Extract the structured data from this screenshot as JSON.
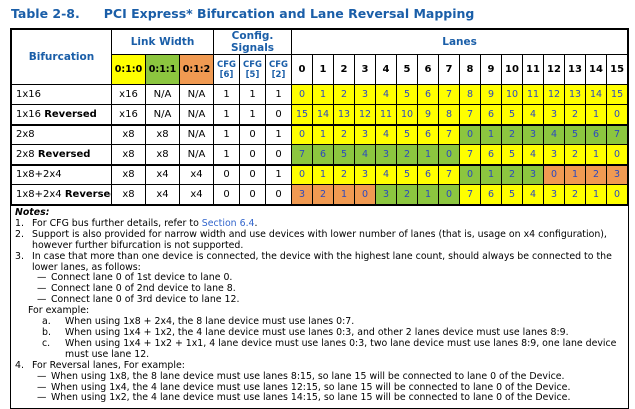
{
  "title": {
    "number": "Table 2-8.",
    "text": "PCI Express* Bifurcation and Lane Reversal Mapping"
  },
  "palette": {
    "heading_blue": "#1a5ea8",
    "lane_text_blue": "#2b49c0",
    "link_blue": "#3366cc",
    "border": "#000000",
    "cell_colors": {
      "y": "#ffff00",
      "g": "#8cc63f",
      "o": "#f09a52"
    }
  },
  "table": {
    "headers": {
      "bifurcation": "Bifurcation",
      "link_width": "Link Width",
      "config_signals": "Config. Signals",
      "lanes": "Lanes",
      "link_width_cols": [
        {
          "label": "0:1:0",
          "color": "y"
        },
        {
          "label": "0:1:1",
          "color": "g"
        },
        {
          "label": "0:1:2",
          "color": "o"
        }
      ],
      "cfg_cols": [
        {
          "top": "CFG",
          "bottom": "[6]"
        },
        {
          "top": "CFG",
          "bottom": "[5]"
        },
        {
          "top": "CFG",
          "bottom": "[2]"
        }
      ],
      "lane_numbers": [
        "0",
        "1",
        "2",
        "3",
        "4",
        "5",
        "6",
        "7",
        "8",
        "9",
        "10",
        "11",
        "12",
        "13",
        "14",
        "15"
      ]
    },
    "rows": [
      {
        "label": "1x16",
        "label_bold": "",
        "link_width": [
          "x16",
          "N/A",
          "N/A"
        ],
        "cfg": [
          "1",
          "1",
          "1"
        ],
        "lane_values": [
          "0",
          "1",
          "2",
          "3",
          "4",
          "5",
          "6",
          "7",
          "8",
          "9",
          "10",
          "11",
          "12",
          "13",
          "14",
          "15"
        ],
        "lane_colors": "yyyyyyyyyyyyyyyy",
        "thick_bottom": false
      },
      {
        "label": "1x16",
        "label_bold": "Reversed",
        "link_width": [
          "x16",
          "N/A",
          "N/A"
        ],
        "cfg": [
          "1",
          "1",
          "0"
        ],
        "lane_values": [
          "15",
          "14",
          "13",
          "12",
          "11",
          "10",
          "9",
          "8",
          "7",
          "6",
          "5",
          "4",
          "3",
          "2",
          "1",
          "0"
        ],
        "lane_colors": "yyyyyyyyyyyyyyyy",
        "thick_bottom": true
      },
      {
        "label": "2x8",
        "label_bold": "",
        "link_width": [
          "x8",
          "x8",
          "N/A"
        ],
        "cfg": [
          "1",
          "0",
          "1"
        ],
        "lane_values": [
          "0",
          "1",
          "2",
          "3",
          "4",
          "5",
          "6",
          "7",
          "0",
          "1",
          "2",
          "3",
          "4",
          "5",
          "6",
          "7"
        ],
        "lane_colors": "yyyyyyyygggggggg",
        "thick_bottom": false
      },
      {
        "label": "2x8",
        "label_bold": "Reversed",
        "link_width": [
          "x8",
          "x8",
          "N/A"
        ],
        "cfg": [
          "1",
          "0",
          "0"
        ],
        "lane_values": [
          "7",
          "6",
          "5",
          "4",
          "3",
          "2",
          "1",
          "0",
          "7",
          "6",
          "5",
          "4",
          "3",
          "2",
          "1",
          "0"
        ],
        "lane_colors": "ggggggggyyyyyyyy",
        "thick_bottom": true
      },
      {
        "label": "1x8+2x4",
        "label_bold": "",
        "link_width": [
          "x8",
          "x4",
          "x4"
        ],
        "cfg": [
          "0",
          "0",
          "1"
        ],
        "lane_values": [
          "0",
          "1",
          "2",
          "3",
          "4",
          "5",
          "6",
          "7",
          "0",
          "1",
          "2",
          "3",
          "0",
          "1",
          "2",
          "3"
        ],
        "lane_colors": "yyyyyyyyggggoooo",
        "thick_bottom": false
      },
      {
        "label": "1x8+2x4",
        "label_bold": "Reversed",
        "link_width": [
          "x8",
          "x4",
          "x4"
        ],
        "cfg": [
          "0",
          "0",
          "0"
        ],
        "lane_values": [
          "3",
          "2",
          "1",
          "0",
          "3",
          "2",
          "1",
          "0",
          "7",
          "6",
          "5",
          "4",
          "3",
          "2",
          "1",
          "0"
        ],
        "lane_colors": "ooooggggyyyyyyyy",
        "thick_bottom": false
      }
    ]
  },
  "notes": {
    "title": "Notes:",
    "dash": "—",
    "items": [
      {
        "num": "1.",
        "parts": [
          {
            "t": "For CFG bus further details, refer to "
          },
          {
            "t": "Section 6.4",
            "link": true
          },
          {
            "t": "."
          }
        ]
      },
      {
        "num": "2.",
        "text": "Support is also provided for narrow width and use devices with lower number of lanes (that is, usage on x4 configuration), however further bifurcation is not supported."
      },
      {
        "num": "3.",
        "text": "In case that more than one device is connected, the device with the highest lane count, should always be connected to the lower lanes, as follows:",
        "dashes": [
          "Connect lane 0 of 1st device to lane 0.",
          "Connect lane 0 of 2nd device to lane 8.",
          "Connect lane 0 of 3rd device to lane 12."
        ],
        "sub_title": "For example:",
        "lettered": [
          {
            "l": "a.",
            "t": "When using 1x8 + 2x4, the 8 lane device must use lanes 0:7."
          },
          {
            "l": "b.",
            "t": "When using 1x4 + 1x2, the 4 lane device must use lanes 0:3, and other 2 lanes device must use lanes 8:9."
          },
          {
            "l": "c.",
            "t": "When using 1x4 + 1x2 + 1x1, 4 lane device must use lanes 0:3, two lane device must use lanes 8:9, one lane device must use lane 12."
          }
        ]
      },
      {
        "num": "4.",
        "text": "For Reversal lanes, For example:",
        "dashes": [
          "When using 1x8, the 8 lane device must use lanes 8:15, so lane 15 will be connected to lane 0 of the Device.",
          "When using 1x4, the 4 lane device must use lanes 12:15, so lane 15 will be connected to lane 0 of the Device.",
          "When using 1x2, the 4 lane device must use lanes 14:15, so lane 15 will be connected to lane 0 of the Device."
        ]
      }
    ]
  }
}
